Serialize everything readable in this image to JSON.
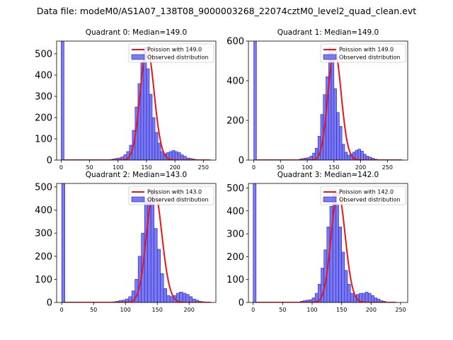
{
  "figure": {
    "title": "Data file: modeM0/AS1A07_138T08_9000003268_22074cztM0_level2_quad_clean.evt"
  },
  "colors": {
    "bar_fill": "#7b7bef",
    "bar_edge": "#1f1fd0",
    "poisson_line": "#e8161b",
    "axis": "#000000"
  },
  "chart_data": [
    {
      "type": "bar",
      "title": "Quadrant 0: Median=149.0",
      "xlim": [
        -8,
        272
      ],
      "ylim": [
        0,
        560
      ],
      "xticks": [
        0,
        50,
        100,
        150,
        200,
        250
      ],
      "yticks": [
        0,
        100,
        200,
        300,
        400,
        500
      ],
      "legend": [
        "Poission with 149.0",
        "Observed distribution"
      ],
      "legend_position": "top-right",
      "bin_width": 5,
      "bins": [
        {
          "x": 0,
          "y": 560
        },
        {
          "x": 85,
          "y": 3
        },
        {
          "x": 90,
          "y": 5
        },
        {
          "x": 95,
          "y": 8
        },
        {
          "x": 100,
          "y": 10
        },
        {
          "x": 105,
          "y": 15
        },
        {
          "x": 110,
          "y": 25
        },
        {
          "x": 115,
          "y": 40
        },
        {
          "x": 120,
          "y": 70
        },
        {
          "x": 125,
          "y": 140
        },
        {
          "x": 130,
          "y": 250
        },
        {
          "x": 135,
          "y": 360
        },
        {
          "x": 140,
          "y": 460
        },
        {
          "x": 145,
          "y": 530
        },
        {
          "x": 150,
          "y": 430
        },
        {
          "x": 155,
          "y": 310
        },
        {
          "x": 160,
          "y": 200
        },
        {
          "x": 165,
          "y": 130
        },
        {
          "x": 170,
          "y": 80
        },
        {
          "x": 175,
          "y": 40
        },
        {
          "x": 180,
          "y": 30
        },
        {
          "x": 185,
          "y": 35
        },
        {
          "x": 190,
          "y": 40
        },
        {
          "x": 195,
          "y": 45
        },
        {
          "x": 200,
          "y": 40
        },
        {
          "x": 205,
          "y": 35
        },
        {
          "x": 210,
          "y": 25
        },
        {
          "x": 215,
          "y": 18
        },
        {
          "x": 220,
          "y": 10
        },
        {
          "x": 225,
          "y": 8
        },
        {
          "x": 230,
          "y": 5
        },
        {
          "x": 235,
          "y": 3
        },
        {
          "x": 240,
          "y": 2
        }
      ],
      "poisson": {
        "mean": 149.0,
        "peak": 530,
        "x_range": [
          0,
          260
        ]
      }
    },
    {
      "type": "bar",
      "title": "Quadrant 1: Median=149.0",
      "xlim": [
        -10,
        288
      ],
      "ylim": [
        0,
        600
      ],
      "xticks": [
        0,
        50,
        100,
        150,
        200,
        250
      ],
      "yticks": [
        0,
        200,
        400,
        600
      ],
      "legend": [
        "Poission with 149.0",
        "Observed distribution"
      ],
      "legend_position": "top-right",
      "bin_width": 5,
      "bins": [
        {
          "x": 0,
          "y": 600
        },
        {
          "x": 85,
          "y": 5
        },
        {
          "x": 90,
          "y": 8
        },
        {
          "x": 95,
          "y": 10
        },
        {
          "x": 100,
          "y": 12
        },
        {
          "x": 105,
          "y": 20
        },
        {
          "x": 110,
          "y": 35
        },
        {
          "x": 115,
          "y": 60
        },
        {
          "x": 120,
          "y": 120
        },
        {
          "x": 125,
          "y": 230
        },
        {
          "x": 130,
          "y": 330
        },
        {
          "x": 135,
          "y": 420
        },
        {
          "x": 140,
          "y": 570
        },
        {
          "x": 145,
          "y": 520
        },
        {
          "x": 150,
          "y": 360
        },
        {
          "x": 155,
          "y": 240
        },
        {
          "x": 160,
          "y": 170
        },
        {
          "x": 165,
          "y": 80
        },
        {
          "x": 170,
          "y": 40
        },
        {
          "x": 175,
          "y": 25
        },
        {
          "x": 180,
          "y": 30
        },
        {
          "x": 185,
          "y": 40
        },
        {
          "x": 190,
          "y": 50
        },
        {
          "x": 195,
          "y": 55
        },
        {
          "x": 200,
          "y": 45
        },
        {
          "x": 205,
          "y": 30
        },
        {
          "x": 210,
          "y": 20
        },
        {
          "x": 215,
          "y": 15
        },
        {
          "x": 220,
          "y": 10
        },
        {
          "x": 225,
          "y": 5
        },
        {
          "x": 230,
          "y": 3
        }
      ],
      "poisson": {
        "mean": 149.0,
        "peak": 560,
        "x_range": [
          0,
          275
        ]
      }
    },
    {
      "type": "bar",
      "title": "Quadrant 2: Median=143.0",
      "xlim": [
        -8,
        242
      ],
      "ylim": [
        0,
        515
      ],
      "xticks": [
        0,
        50,
        100,
        150,
        200
      ],
      "yticks": [
        0,
        100,
        200,
        300,
        400,
        500
      ],
      "legend": [
        "Poission with 143.0",
        "Observed distribution"
      ],
      "legend_position": "top-right",
      "bin_width": 5,
      "bins": [
        {
          "x": 0,
          "y": 515
        },
        {
          "x": 80,
          "y": 3
        },
        {
          "x": 85,
          "y": 5
        },
        {
          "x": 90,
          "y": 8
        },
        {
          "x": 95,
          "y": 10
        },
        {
          "x": 100,
          "y": 15
        },
        {
          "x": 105,
          "y": 25
        },
        {
          "x": 110,
          "y": 50
        },
        {
          "x": 115,
          "y": 100
        },
        {
          "x": 120,
          "y": 200
        },
        {
          "x": 125,
          "y": 300
        },
        {
          "x": 130,
          "y": 440
        },
        {
          "x": 135,
          "y": 450
        },
        {
          "x": 140,
          "y": 490
        },
        {
          "x": 145,
          "y": 320
        },
        {
          "x": 150,
          "y": 230
        },
        {
          "x": 155,
          "y": 125
        },
        {
          "x": 160,
          "y": 60
        },
        {
          "x": 165,
          "y": 30
        },
        {
          "x": 170,
          "y": 25
        },
        {
          "x": 175,
          "y": 30
        },
        {
          "x": 180,
          "y": 40
        },
        {
          "x": 185,
          "y": 45
        },
        {
          "x": 190,
          "y": 40
        },
        {
          "x": 195,
          "y": 35
        },
        {
          "x": 200,
          "y": 25
        },
        {
          "x": 205,
          "y": 15
        },
        {
          "x": 210,
          "y": 10
        },
        {
          "x": 215,
          "y": 5
        },
        {
          "x": 220,
          "y": 3
        }
      ],
      "poisson": {
        "mean": 143.0,
        "peak": 490,
        "x_range": [
          0,
          232
        ]
      }
    },
    {
      "type": "bar",
      "title": "Quadrant 3: Median=142.0",
      "xlim": [
        -8,
        262
      ],
      "ylim": [
        0,
        520
      ],
      "xticks": [
        0,
        50,
        100,
        150,
        200,
        250
      ],
      "yticks": [
        0,
        100,
        200,
        300,
        400,
        500
      ],
      "legend": [
        "Poission with 142.0",
        "Observed distribution"
      ],
      "legend_position": "top-right",
      "bin_width": 5,
      "bins": [
        {
          "x": 0,
          "y": 520
        },
        {
          "x": 80,
          "y": 5
        },
        {
          "x": 85,
          "y": 8
        },
        {
          "x": 90,
          "y": 10
        },
        {
          "x": 95,
          "y": 12
        },
        {
          "x": 100,
          "y": 20
        },
        {
          "x": 105,
          "y": 40
        },
        {
          "x": 110,
          "y": 80
        },
        {
          "x": 115,
          "y": 150
        },
        {
          "x": 120,
          "y": 230
        },
        {
          "x": 125,
          "y": 330
        },
        {
          "x": 130,
          "y": 420
        },
        {
          "x": 135,
          "y": 490
        },
        {
          "x": 140,
          "y": 430
        },
        {
          "x": 145,
          "y": 330
        },
        {
          "x": 150,
          "y": 220
        },
        {
          "x": 155,
          "y": 140
        },
        {
          "x": 160,
          "y": 80
        },
        {
          "x": 165,
          "y": 40
        },
        {
          "x": 170,
          "y": 30
        },
        {
          "x": 175,
          "y": 35
        },
        {
          "x": 180,
          "y": 40
        },
        {
          "x": 185,
          "y": 40
        },
        {
          "x": 190,
          "y": 45
        },
        {
          "x": 195,
          "y": 40
        },
        {
          "x": 200,
          "y": 30
        },
        {
          "x": 205,
          "y": 20
        },
        {
          "x": 210,
          "y": 15
        },
        {
          "x": 215,
          "y": 8
        },
        {
          "x": 220,
          "y": 5
        }
      ],
      "poisson": {
        "mean": 142.0,
        "peak": 480,
        "x_range": [
          0,
          240
        ]
      }
    }
  ]
}
